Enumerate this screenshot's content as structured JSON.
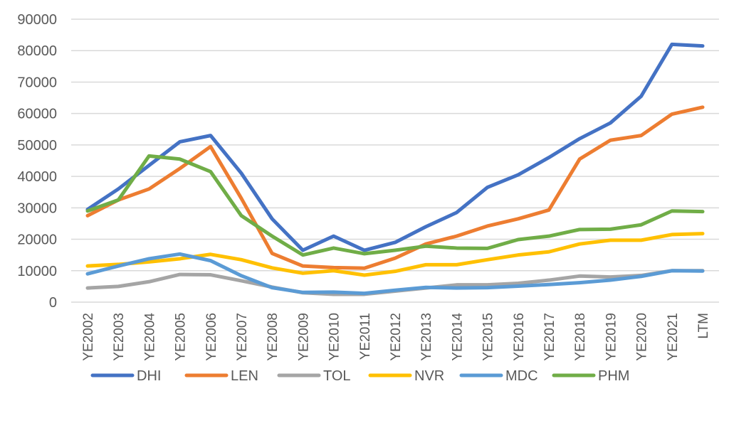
{
  "chart_data": {
    "type": "line",
    "title": "",
    "xlabel": "",
    "ylabel": "",
    "ylim": [
      0,
      90000
    ],
    "yticks": [
      0,
      10000,
      20000,
      30000,
      40000,
      50000,
      60000,
      70000,
      80000,
      90000
    ],
    "grid": true,
    "legend": "bottom",
    "categories": [
      "YE2002",
      "YE2003",
      "YE2004",
      "YE2005",
      "YE2006",
      "YE2007",
      "YE2008",
      "YE2009",
      "YE2010",
      "YE2011",
      "YE2012",
      "YE2013",
      "YE2014",
      "YE2015",
      "YE2016",
      "YE2017",
      "YE2018",
      "YE2019",
      "YE2020",
      "YE2021",
      "LTM"
    ],
    "series": [
      {
        "name": "DHI",
        "color": "#4472C4",
        "values": [
          29500,
          36000,
          43500,
          51000,
          53000,
          41000,
          26500,
          16500,
          21000,
          16500,
          19000,
          24000,
          28500,
          36500,
          40500,
          46000,
          52000,
          57000,
          65500,
          82000,
          81500
        ]
      },
      {
        "name": "LEN",
        "color": "#ED7D31",
        "values": [
          27500,
          32500,
          36000,
          42500,
          49500,
          33000,
          15500,
          11500,
          11000,
          10800,
          14000,
          18500,
          21000,
          24200,
          26500,
          29300,
          45500,
          51500,
          53000,
          59800,
          62000
        ]
      },
      {
        "name": "TOL",
        "color": "#A5A5A5",
        "values": [
          4500,
          5000,
          6500,
          8800,
          8700,
          6800,
          4800,
          3000,
          2500,
          2500,
          3500,
          4500,
          5500,
          5500,
          6000,
          7000,
          8300,
          8000,
          8500,
          10000,
          10000
        ]
      },
      {
        "name": "NVR",
        "color": "#FFC000",
        "values": [
          11500,
          12000,
          12800,
          13800,
          15200,
          13500,
          10900,
          9200,
          10000,
          8600,
          9800,
          11900,
          11900,
          13500,
          15000,
          16000,
          18500,
          19700,
          19700,
          21500,
          21800
        ]
      },
      {
        "name": "MDC",
        "color": "#5B9BD5",
        "values": [
          9000,
          11500,
          13800,
          15300,
          13200,
          8400,
          4600,
          3100,
          3200,
          2800,
          3800,
          4700,
          4500,
          4600,
          5100,
          5600,
          6200,
          7000,
          8200,
          10000,
          9900
        ]
      },
      {
        "name": "PHM",
        "color": "#70AD47",
        "values": [
          29000,
          32500,
          46500,
          45500,
          41500,
          27500,
          21000,
          15000,
          17200,
          15400,
          16500,
          17800,
          17200,
          17100,
          19900,
          21000,
          23100,
          23200,
          24600,
          29000,
          28800
        ]
      }
    ]
  }
}
